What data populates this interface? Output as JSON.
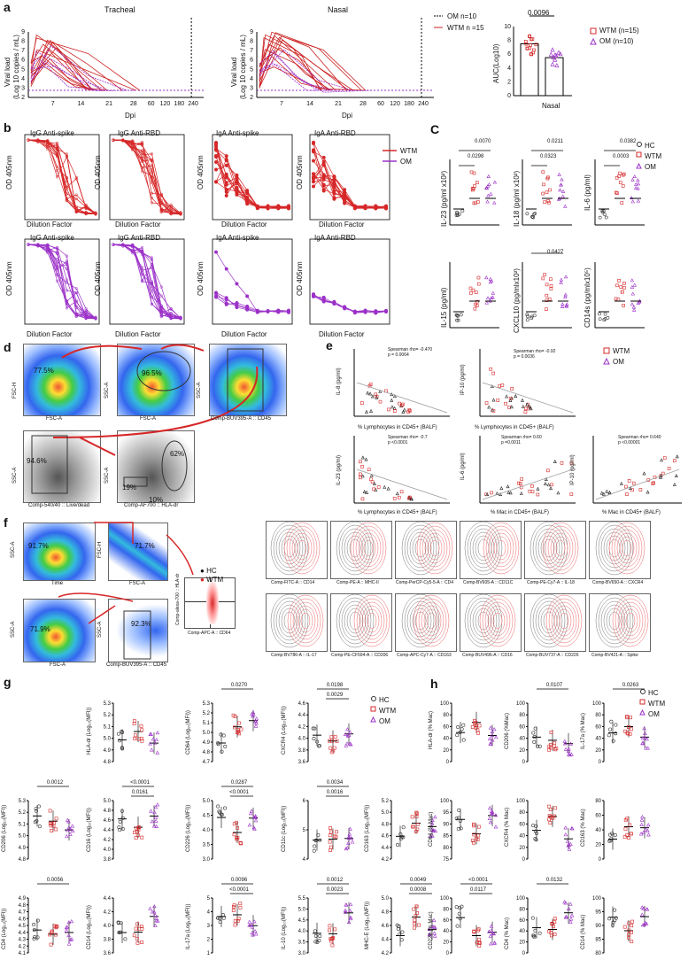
{
  "panels": [
    "a",
    "b",
    "C",
    "d",
    "e",
    "f",
    "g",
    "h"
  ],
  "a": {
    "titles": [
      "Tracheal",
      "Nasal"
    ],
    "ylabel": "Viral load\n(Log 10 copies / mL)",
    "xlabel": "Dpi",
    "xticks": [
      "7",
      "14",
      "21",
      "28",
      "60",
      "120",
      "180",
      "240"
    ],
    "yticks": [
      "2",
      "3",
      "4",
      "5",
      "6",
      "7",
      "8",
      "9"
    ],
    "legend": [
      "OM n=10",
      "WTM n =15"
    ],
    "auc": {
      "ylabel": "AUC(Log10)",
      "xlabel": "Nasal",
      "p": "0.0096",
      "yticks": [
        "0",
        "2",
        "4",
        "6",
        "8",
        "10"
      ],
      "legend": [
        "WTM (n=15)",
        "OM (n=10)"
      ],
      "means": [
        7.5,
        5.5
      ]
    }
  },
  "b": {
    "top": [
      {
        "title": "IgG Anti-spike",
        "x": "Dilution Factor",
        "y": "OD 405nm"
      },
      {
        "title": "IgG Anti-RBD",
        "x": "Dilution Factor",
        "y": "OD 405nm"
      },
      {
        "title": "IgA Anti-spike",
        "x": "Dilution Factor",
        "y": "OD 405nm"
      },
      {
        "title": "IgA Anti-RBD",
        "x": "Dilution Factor",
        "y": "OD 405nm"
      }
    ],
    "bottom": [
      {
        "title": "IgG Anti-spike",
        "x": "Dilution Factor",
        "y": "OD 405nm"
      },
      {
        "title": "IgG Anti-RBD",
        "x": "Dilution Factor",
        "y": "OD 405nm"
      },
      {
        "title": "IgA Anti-spike",
        "x": "Dilution Factor",
        "y": "OD 405nm"
      },
      {
        "title": "IgA Anti-RBD",
        "x": "Dilution Factor",
        "y": "OD 405nm"
      }
    ],
    "legend": [
      "WTM",
      "OM"
    ]
  },
  "c": {
    "legend": [
      "HC",
      "WTM",
      "OM"
    ],
    "plots": [
      {
        "y": "IL-23 (pg/ml x10²)",
        "p": [
          "0.0070",
          "0.0298"
        ]
      },
      {
        "y": "IL-18 (pg/ml x10²)",
        "p": [
          "0.0211",
          "0.0323"
        ]
      },
      {
        "y": "IL-6 (pg/ml)",
        "p": [
          "0.0382",
          "0.0003"
        ]
      },
      {
        "y": "IL-15 (pg/ml)",
        "p": []
      },
      {
        "y": "CXCL10 (pg/mlx10²)",
        "p": [
          "0.0427"
        ]
      },
      {
        "y": "CD14s (pg/mlx10⁵)",
        "p": []
      }
    ]
  },
  "d": {
    "pcts": [
      "77.5%",
      "96.5%",
      "94.6%",
      "62%",
      "19%",
      "10%"
    ],
    "axes": [
      "FSC-H",
      "FSC-A",
      "SSC-A",
      "Comp-BUV395-A :: CD45",
      "Comp-540/40 :: Live/dead",
      "Comp-AF700 :: HLA-dr"
    ]
  },
  "e": {
    "legend": [
      "WTM",
      "OM"
    ],
    "plots": [
      {
        "y": "IL-8 (pg/ml)",
        "x": "% Lymphocytes in CD45+ (BALF)",
        "stat": "Spearman rho= -0.470",
        "p": "p = 0.0064"
      },
      {
        "y": "IP-10 (pg/ml)",
        "x": "% Lymphocytes in CD45+ (BALF)",
        "stat": "Spearman rho= -0.92",
        "p": "p = 0.0036"
      },
      {
        "y": "IL-23 (pg/ml)",
        "x": "% Lymphocytes in CD45+ (BALF)",
        "stat": "Spearman rho= -0.7",
        "p": "p <0.0001"
      },
      {
        "y": "IL-6 (pg/ml)",
        "x": "% Mac in CD45+ (BALF)",
        "stat": "Spearman rho= 0.60",
        "p": "p =0.0011"
      },
      {
        "y": "IP-10 (pg/ml)",
        "x": "% Mac in CD45+ (BALF)",
        "stat": "Spearman rho= 0.640",
        "p": "p <0.00001"
      }
    ]
  },
  "f": {
    "legend": [
      "HC",
      "WTM"
    ],
    "pcts": [
      "91.7%",
      "71.7%",
      "71.9%",
      "92.3%"
    ],
    "axes": [
      "SSC-A",
      "Time",
      "FSC-H",
      "FSC-A",
      "SSC-A",
      "FSC-A",
      "SSC-A",
      "Comp-BUV395-A :: CD45",
      "Comp-alexa-700 :: HLA-dr",
      "Comp-APC-A :: CD64"
    ],
    "contours": [
      "Comp-FITC-A :: CD14",
      "Comp-PE-A :: MHC-II",
      "Comp-PerCP-Cy5-5-A :: CD4",
      "Comp-BV605-A :: CD11C",
      "Comp-PE-Cy7-A :: IL-18",
      "Comp-BV650-A :: CXCR4",
      "Comp-BV786-A :: IL-17",
      "Comp-PE-CF594-A :: CD206",
      "Comp-APC-Cy7-A :: CD163",
      "Comp-BUV496-A :: CD16",
      "Comp-BUV737-A :: CD226",
      "Comp-BV421-A :: Spike"
    ]
  },
  "g": {
    "legend": [
      "HC",
      "WTM",
      "OM"
    ],
    "plots": [
      {
        "y": "HLA-dr (Log₁₀(MFI))",
        "ticks": [
          "4.8",
          "4.9",
          "5.0",
          "5.1",
          "5.2",
          "5.3"
        ],
        "p": []
      },
      {
        "y": "CD64 (Log₁₀(MFI))",
        "ticks": [
          "4.7",
          "4.8",
          "4.9",
          "5.0",
          "5.1",
          "5.2",
          "5.3"
        ],
        "p": [
          "0.0270"
        ]
      },
      {
        "y": "CXCR4 (Log₁₀(MFI))",
        "ticks": [
          "3.6",
          "3.8",
          "4.0",
          "4.2",
          "4.4",
          "4.6"
        ],
        "p": [
          "0.0198",
          "0.0029"
        ]
      },
      {
        "y": "CD206 (Log₁₀(MFI))",
        "ticks": [
          "4.8",
          "4.9",
          "5.0",
          "5.1",
          "5.2",
          "5.3"
        ],
        "p": [
          "0.0012"
        ]
      },
      {
        "y": "CD16 (Log₁₀(MFI))",
        "ticks": [
          "3.8",
          "4.0",
          "4.2",
          "4.4",
          "4.6",
          "4.8",
          "5.0"
        ],
        "p": [
          "<0.0001",
          "0.0161"
        ]
      },
      {
        "y": "CD226 (Log₁₀(MFI))",
        "ticks": [
          "3.0",
          "3.5",
          "4.0",
          "4.5",
          "5.0"
        ],
        "p": [
          "0.0287",
          "<0.0001"
        ]
      },
      {
        "y": "CD11c (Log₁₀(MFI))",
        "ticks": [
          "4",
          "5",
          "6"
        ],
        "p": [
          "0.0034",
          "0.0016"
        ]
      },
      {
        "y": "CD163 (Log₁₀(MFI))",
        "ticks": [
          "4.2",
          "4.4",
          "4.6",
          "4.8",
          "5.0",
          "5.2"
        ],
        "p": []
      },
      {
        "y": "CD4 (Log₁₀(MFI))",
        "ticks": [
          "4.1",
          "4.2",
          "4.3",
          "4.4",
          "4.5",
          "4.6",
          "4.7",
          "4.8",
          "4.9"
        ],
        "p": [
          "0.0056"
        ]
      },
      {
        "y": "CD14 (Log₁₀(MFI))",
        "ticks": [
          "3.6",
          "3.8",
          "4.0",
          "4.2",
          "4.4"
        ],
        "p": []
      },
      {
        "y": "IL-17a (Log₁₀(MFI))",
        "ticks": [
          "1",
          "2",
          "3",
          "4",
          "5"
        ],
        "p": [
          "0.0096",
          "<0.0001"
        ]
      },
      {
        "y": "IL-10 (Log₁₀(MFI))",
        "ticks": [
          "3.0",
          "3.5",
          "4.0",
          "4.5",
          "5.0",
          "5.5"
        ],
        "p": [
          "0.0012",
          "0.0023"
        ]
      },
      {
        "y": "MHC-E (Log₁₀(MFI))",
        "ticks": [
          "4.2",
          "4.4",
          "4.6",
          "4.8",
          "5.0"
        ],
        "p": [
          "0.0049",
          "0.0008"
        ]
      }
    ]
  },
  "h": {
    "legend": [
      "HC",
      "WTM",
      "OM"
    ],
    "plots": [
      {
        "y": "HLA-dr (% Mac)",
        "ticks": [
          "0",
          "20",
          "40",
          "60",
          "80",
          "100"
        ],
        "p": []
      },
      {
        "y": "CD206 (%Mac)",
        "ticks": [
          "0",
          "20",
          "40",
          "60",
          "80",
          "100"
        ],
        "p": [
          "0.0107"
        ]
      },
      {
        "y": "IL-17a (% Mac)",
        "ticks": [
          "0",
          "20",
          "40",
          "60",
          "80",
          "100"
        ],
        "p": [
          "0.0263"
        ]
      },
      {
        "y": "CD64 (% Mac)",
        "ticks": [
          "75",
          "80",
          "85",
          "90",
          "95",
          "100"
        ],
        "p": []
      },
      {
        "y": "CXCR4 (% Mac)",
        "ticks": [
          "0",
          "20",
          "40",
          "60",
          "80",
          "100"
        ],
        "p": []
      },
      {
        "y": "CD163 (% Mac)",
        "ticks": [
          "0",
          "20",
          "40",
          "60",
          "80"
        ],
        "p": []
      },
      {
        "y": "CD226 (% Mac)",
        "ticks": [
          "0",
          "20",
          "40",
          "60",
          "80",
          "100"
        ],
        "p": [
          "<0.0001",
          "0.0117"
        ]
      },
      {
        "y": "CD4 (% Mac)",
        "ticks": [
          "0",
          "20",
          "40",
          "60",
          "80",
          "100"
        ],
        "p": [
          "0.0132"
        ]
      },
      {
        "y": "CD14 (% Mac)",
        "ticks": [
          "80",
          "85",
          "90",
          "95",
          "100"
        ],
        "p": []
      }
    ]
  },
  "colors": {
    "wtm": "#d62728",
    "om": "#9b30c8",
    "hc": "#333333",
    "line": "#cc2222"
  }
}
